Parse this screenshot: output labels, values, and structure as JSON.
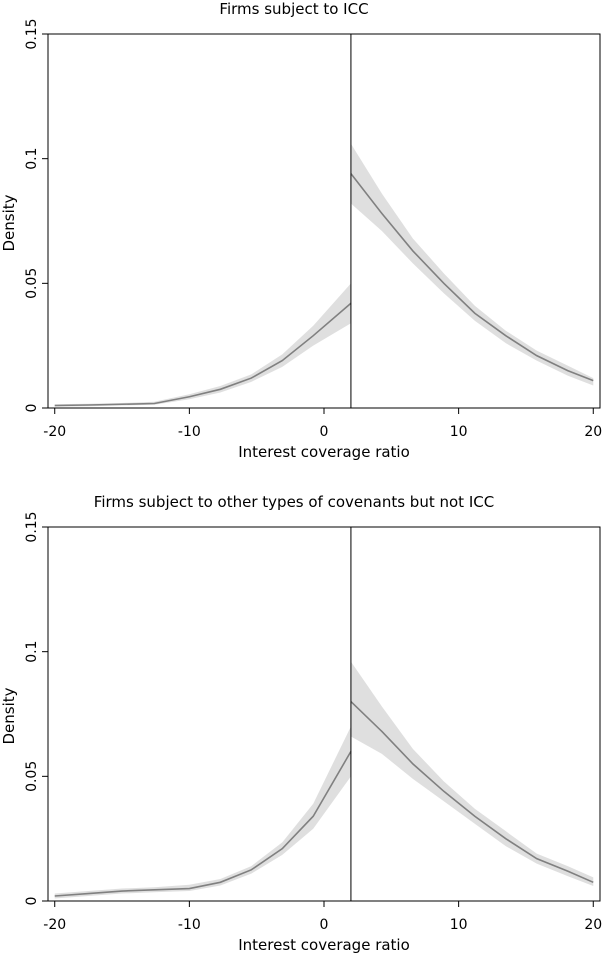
{
  "chart_data": [
    {
      "type": "line",
      "title": "Firms subject to ICC",
      "xlabel": "Interest coverage ratio",
      "ylabel": "Density",
      "xlim": [
        -20.5,
        20.5
      ],
      "ylim": [
        0,
        0.15
      ],
      "xticks": [
        -20,
        -10,
        0,
        10,
        20
      ],
      "yticks": [
        0,
        0.05,
        0.1,
        0.15
      ],
      "xtick_labels": [
        "-20",
        "-10",
        "0",
        "10",
        "20"
      ],
      "ytick_labels": [
        "0",
        "0.05",
        "0.1",
        "0.15"
      ],
      "cutoff": 2,
      "grid": false,
      "series": [
        {
          "segment": "left",
          "x": [
            -20,
            -17.5,
            -15,
            -12.6,
            -10,
            -7.7,
            -5.4,
            -3.1,
            -0.8,
            2
          ],
          "y": [
            0.001,
            0.0012,
            0.0015,
            0.0018,
            0.0045,
            0.0075,
            0.012,
            0.019,
            0.029,
            0.042
          ],
          "lower": [
            0.0005,
            0.0007,
            0.001,
            0.0013,
            0.0035,
            0.0062,
            0.0105,
            0.0165,
            0.025,
            0.034
          ],
          "upper": [
            0.0015,
            0.0017,
            0.002,
            0.0025,
            0.0055,
            0.0088,
            0.0135,
            0.0215,
            0.033,
            0.05
          ]
        },
        {
          "segment": "right",
          "x": [
            2,
            4.3,
            6.6,
            8.9,
            11.2,
            13.5,
            15.8,
            18.1,
            20
          ],
          "y": [
            0.094,
            0.078,
            0.063,
            0.05,
            0.038,
            0.029,
            0.021,
            0.015,
            0.011
          ],
          "lower": [
            0.082,
            0.071,
            0.058,
            0.046,
            0.035,
            0.026,
            0.019,
            0.013,
            0.009
          ],
          "upper": [
            0.106,
            0.086,
            0.068,
            0.054,
            0.041,
            0.031,
            0.023,
            0.017,
            0.012
          ]
        }
      ]
    },
    {
      "type": "line",
      "title": "Firms subject to other types of covenants but not ICC",
      "xlabel": "Interest coverage ratio",
      "ylabel": "Density",
      "xlim": [
        -20.5,
        20.5
      ],
      "ylim": [
        0,
        0.15
      ],
      "xticks": [
        -20,
        -10,
        0,
        10,
        20
      ],
      "yticks": [
        0,
        0.05,
        0.1,
        0.15
      ],
      "xtick_labels": [
        "-20",
        "-10",
        "0",
        "10",
        "20"
      ],
      "ytick_labels": [
        "0",
        "0.05",
        "0.1",
        "0.15"
      ],
      "cutoff": 2,
      "grid": false,
      "series": [
        {
          "segment": "left",
          "x": [
            -20,
            -17.5,
            -15,
            -12.6,
            -10,
            -7.7,
            -5.4,
            -3.1,
            -0.8,
            2
          ],
          "y": [
            0.002,
            0.003,
            0.004,
            0.0045,
            0.005,
            0.0075,
            0.0125,
            0.021,
            0.034,
            0.06
          ],
          "lower": [
            0.001,
            0.002,
            0.003,
            0.0035,
            0.004,
            0.0062,
            0.011,
            0.0185,
            0.029,
            0.05
          ],
          "upper": [
            0.003,
            0.004,
            0.005,
            0.0055,
            0.0065,
            0.0088,
            0.014,
            0.0235,
            0.039,
            0.07
          ]
        },
        {
          "segment": "right",
          "x": [
            2,
            4.3,
            6.6,
            8.9,
            11.2,
            13.5,
            15.8,
            18.1,
            20
          ],
          "y": [
            0.08,
            0.068,
            0.055,
            0.044,
            0.034,
            0.025,
            0.017,
            0.012,
            0.0075
          ],
          "lower": [
            0.066,
            0.059,
            0.049,
            0.04,
            0.031,
            0.022,
            0.015,
            0.01,
            0.006
          ],
          "upper": [
            0.096,
            0.078,
            0.061,
            0.048,
            0.037,
            0.028,
            0.019,
            0.014,
            0.0095
          ]
        }
      ]
    }
  ]
}
